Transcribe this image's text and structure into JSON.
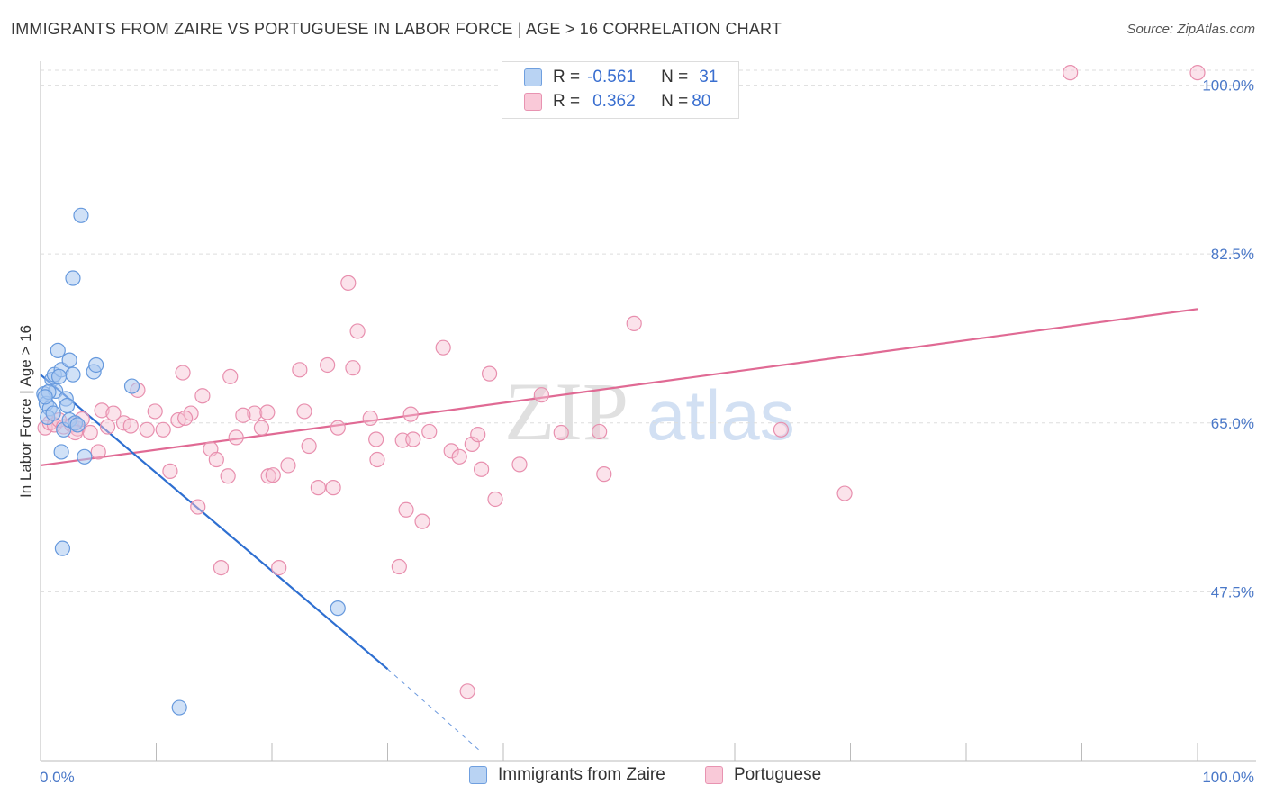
{
  "title": "IMMIGRANTS FROM ZAIRE VS PORTUGUESE IN LABOR FORCE | AGE > 16 CORRELATION CHART",
  "source": "Source: ZipAtlas.com",
  "watermark": {
    "zip": "ZIP",
    "atlas": "atlas"
  },
  "legend": {
    "series1": {
      "r_label": "R =",
      "r_value": "-0.561",
      "n_label": "N =",
      "n_value": "31"
    },
    "series2": {
      "r_label": "R =",
      "r_value": "0.362",
      "n_label": "N =",
      "n_value": "80"
    }
  },
  "bottom_legend": {
    "series1": "Immigrants from Zaire",
    "series2": "Portuguese"
  },
  "colors": {
    "zaire_fill": "#a9c8f0",
    "zaire_stroke": "#6699dd",
    "zaire_line": "#2e6fd1",
    "portuguese_fill": "#f7c1d2",
    "portuguese_stroke": "#e88fae",
    "portuguese_line": "#e06a94",
    "grid": "#dddddd",
    "tick_label": "#4a78c8"
  },
  "chart_data": {
    "type": "scatter",
    "title": "IMMIGRANTS FROM ZAIRE VS PORTUGUESE IN LABOR FORCE | AGE > 16 CORRELATION CHART",
    "xlabel": "",
    "ylabel": "In Labor Force | Age > 16",
    "xlim": [
      0,
      100
    ],
    "ylim": [
      30,
      101.5
    ],
    "x_tick_labels": [
      "0.0%",
      "100.0%"
    ],
    "y_ticks": [
      47.5,
      65.0,
      82.5,
      100.0
    ],
    "y_tick_labels": [
      "47.5%",
      "65.0%",
      "82.5%",
      "100.0%"
    ],
    "grid": true,
    "legend_position": "top-center",
    "series": [
      {
        "name": "Immigrants from Zaire",
        "points": [
          [
            0.3,
            68.0
          ],
          [
            0.5,
            67.0
          ],
          [
            0.8,
            66.5
          ],
          [
            0.6,
            65.6
          ],
          [
            1.0,
            69.5
          ],
          [
            1.2,
            70.0
          ],
          [
            1.5,
            72.5
          ],
          [
            1.8,
            70.5
          ],
          [
            1.3,
            68.3
          ],
          [
            2.2,
            67.5
          ],
          [
            2.5,
            71.5
          ],
          [
            2.8,
            70.0
          ],
          [
            2.0,
            64.3
          ],
          [
            2.5,
            65.3
          ],
          [
            3.0,
            65.0
          ],
          [
            1.8,
            62.0
          ],
          [
            3.8,
            61.5
          ],
          [
            3.5,
            86.5
          ],
          [
            2.8,
            80.0
          ],
          [
            4.6,
            70.3
          ],
          [
            4.8,
            71.0
          ],
          [
            7.9,
            68.8
          ],
          [
            1.9,
            52.0
          ],
          [
            25.7,
            45.8
          ],
          [
            12.0,
            35.5
          ],
          [
            0.7,
            68.2
          ],
          [
            1.1,
            66.0
          ],
          [
            0.4,
            67.7
          ],
          [
            1.6,
            69.8
          ],
          [
            2.3,
            66.8
          ],
          [
            3.2,
            64.8
          ]
        ],
        "trend_solid": [
          [
            0.0,
            70.0
          ],
          [
            30.0,
            39.5
          ]
        ],
        "trend_dashed": [
          [
            30.0,
            39.5
          ],
          [
            38.0,
            31.0
          ]
        ]
      },
      {
        "name": "Portuguese",
        "points": [
          [
            0.4,
            64.5
          ],
          [
            0.8,
            65.0
          ],
          [
            1.2,
            64.8
          ],
          [
            1.6,
            65.3
          ],
          [
            2.0,
            64.6
          ],
          [
            2.7,
            64.8
          ],
          [
            3.2,
            64.4
          ],
          [
            3.6,
            65.4
          ],
          [
            4.3,
            64.0
          ],
          [
            5.3,
            66.3
          ],
          [
            5.8,
            64.6
          ],
          [
            6.3,
            66.0
          ],
          [
            7.2,
            65.0
          ],
          [
            7.8,
            64.7
          ],
          [
            8.4,
            68.4
          ],
          [
            9.2,
            64.3
          ],
          [
            9.9,
            66.2
          ],
          [
            10.6,
            64.3
          ],
          [
            11.2,
            60.0
          ],
          [
            11.9,
            65.3
          ],
          [
            12.3,
            70.2
          ],
          [
            13.0,
            66.0
          ],
          [
            13.6,
            56.3
          ],
          [
            14.0,
            67.8
          ],
          [
            14.7,
            62.3
          ],
          [
            15.2,
            61.2
          ],
          [
            15.6,
            50.0
          ],
          [
            16.2,
            59.5
          ],
          [
            16.4,
            69.8
          ],
          [
            16.9,
            63.5
          ],
          [
            18.5,
            66.0
          ],
          [
            19.1,
            64.5
          ],
          [
            19.6,
            66.1
          ],
          [
            19.7,
            59.5
          ],
          [
            20.1,
            59.6
          ],
          [
            20.6,
            50.0
          ],
          [
            21.4,
            60.6
          ],
          [
            22.4,
            70.5
          ],
          [
            22.8,
            66.2
          ],
          [
            23.2,
            62.6
          ],
          [
            24.0,
            58.3
          ],
          [
            24.8,
            71.0
          ],
          [
            25.3,
            58.3
          ],
          [
            25.7,
            64.5
          ],
          [
            26.6,
            79.5
          ],
          [
            27.0,
            70.7
          ],
          [
            27.4,
            74.5
          ],
          [
            28.5,
            65.5
          ],
          [
            29.0,
            63.3
          ],
          [
            29.1,
            61.2
          ],
          [
            31.0,
            50.1
          ],
          [
            31.3,
            63.2
          ],
          [
            31.6,
            56.0
          ],
          [
            32.0,
            65.9
          ],
          [
            32.2,
            63.3
          ],
          [
            33.0,
            54.8
          ],
          [
            33.6,
            64.1
          ],
          [
            34.8,
            72.8
          ],
          [
            35.5,
            62.1
          ],
          [
            36.2,
            61.5
          ],
          [
            36.9,
            37.2
          ],
          [
            37.3,
            62.8
          ],
          [
            37.8,
            63.8
          ],
          [
            38.1,
            60.2
          ],
          [
            38.8,
            70.1
          ],
          [
            39.3,
            57.1
          ],
          [
            41.4,
            60.7
          ],
          [
            43.3,
            67.9
          ],
          [
            45.0,
            64.0
          ],
          [
            48.3,
            64.1
          ],
          [
            48.7,
            59.7
          ],
          [
            51.3,
            75.3
          ],
          [
            64.0,
            64.3
          ],
          [
            69.5,
            57.7
          ],
          [
            89.0,
            101.3
          ],
          [
            100.0,
            101.3
          ],
          [
            5.0,
            62.0
          ],
          [
            3.0,
            64.0
          ],
          [
            12.5,
            65.5
          ],
          [
            17.5,
            65.8
          ]
        ],
        "trend_solid": [
          [
            0.0,
            60.6
          ],
          [
            100.0,
            76.8
          ]
        ]
      }
    ]
  }
}
